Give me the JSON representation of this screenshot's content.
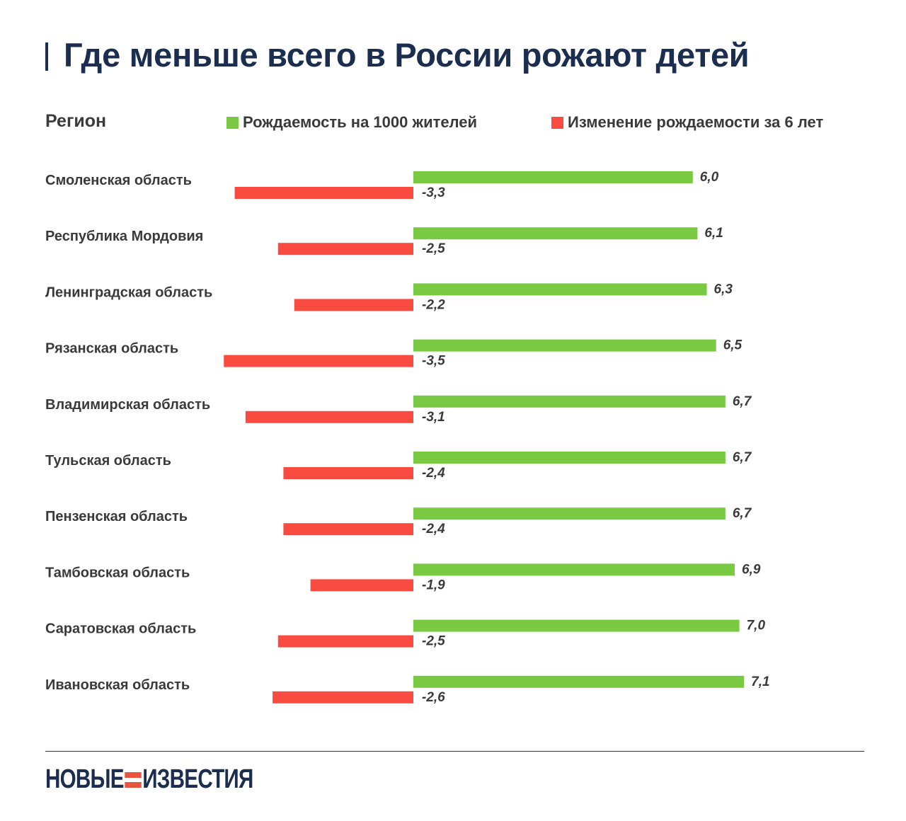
{
  "title": "Где меньше всего в России рожают детей",
  "header": {
    "region_label": "Регион"
  },
  "colors": {
    "title": "#1b2e4f",
    "birth_rate": "#7ac943",
    "change": "#fa4b41",
    "label": "#3a3a3a"
  },
  "legend": {
    "birth_rate": "Рождаемость на 1000 жителей",
    "change": "Изменение рождаемости за 6 лет"
  },
  "chart_data": {
    "type": "bar",
    "orientation": "horizontal",
    "categories": [
      "Смоленская область",
      "Республика Мордовия",
      "Ленинградская область",
      "Рязанская область",
      "Владимирская область",
      "Тульская область",
      "Пензенская область",
      "Тамбовская область",
      "Саратовская область",
      "Ивановская область"
    ],
    "series": [
      {
        "name": "Рождаемость на 1000 жителей",
        "values": [
          6.0,
          6.1,
          6.3,
          6.5,
          6.7,
          6.7,
          6.7,
          6.9,
          7.0,
          7.1
        ],
        "labels": [
          "6,0",
          "6,1",
          "6,3",
          "6,5",
          "6,7",
          "6,7",
          "6,7",
          "6,9",
          "7,0",
          "7,1"
        ]
      },
      {
        "name": "Изменение рождаемости за 6 лет",
        "values": [
          -3.3,
          -2.5,
          -2.2,
          -3.5,
          -3.1,
          -2.4,
          -2.4,
          -1.9,
          -2.5,
          -2.6
        ],
        "labels": [
          "-3,3",
          "-2,5",
          "-2,2",
          "-3,5",
          "-3,1",
          "-2,4",
          "-2,4",
          "-1,9",
          "-2,5",
          "-2,6"
        ]
      }
    ],
    "legend_position": "top"
  },
  "footer": {
    "logo_left": "НОВЫЕ",
    "logo_right": "ИЗВЕСТИЯ"
  }
}
